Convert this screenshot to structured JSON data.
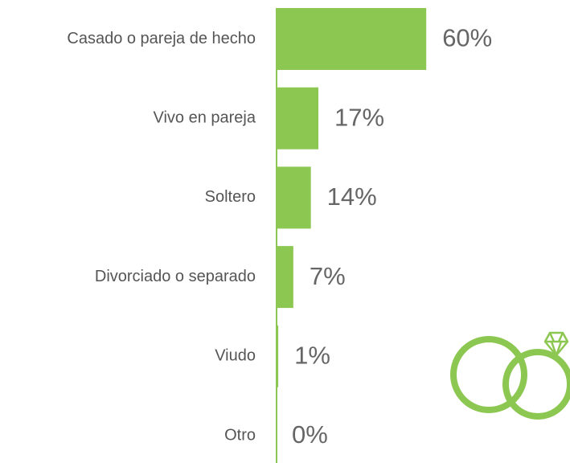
{
  "chart_data": {
    "type": "bar",
    "orientation": "horizontal",
    "categories": [
      "Casado o pareja de hecho",
      "Vivo en pareja",
      "Soltero",
      "Divorciado o separado",
      "Viudo",
      "Otro"
    ],
    "values": [
      60,
      17,
      14,
      7,
      1,
      0
    ],
    "value_labels": [
      "60%",
      "17%",
      "14%",
      "7%",
      "1%",
      "0%"
    ],
    "color": "#8cc751"
  }
}
